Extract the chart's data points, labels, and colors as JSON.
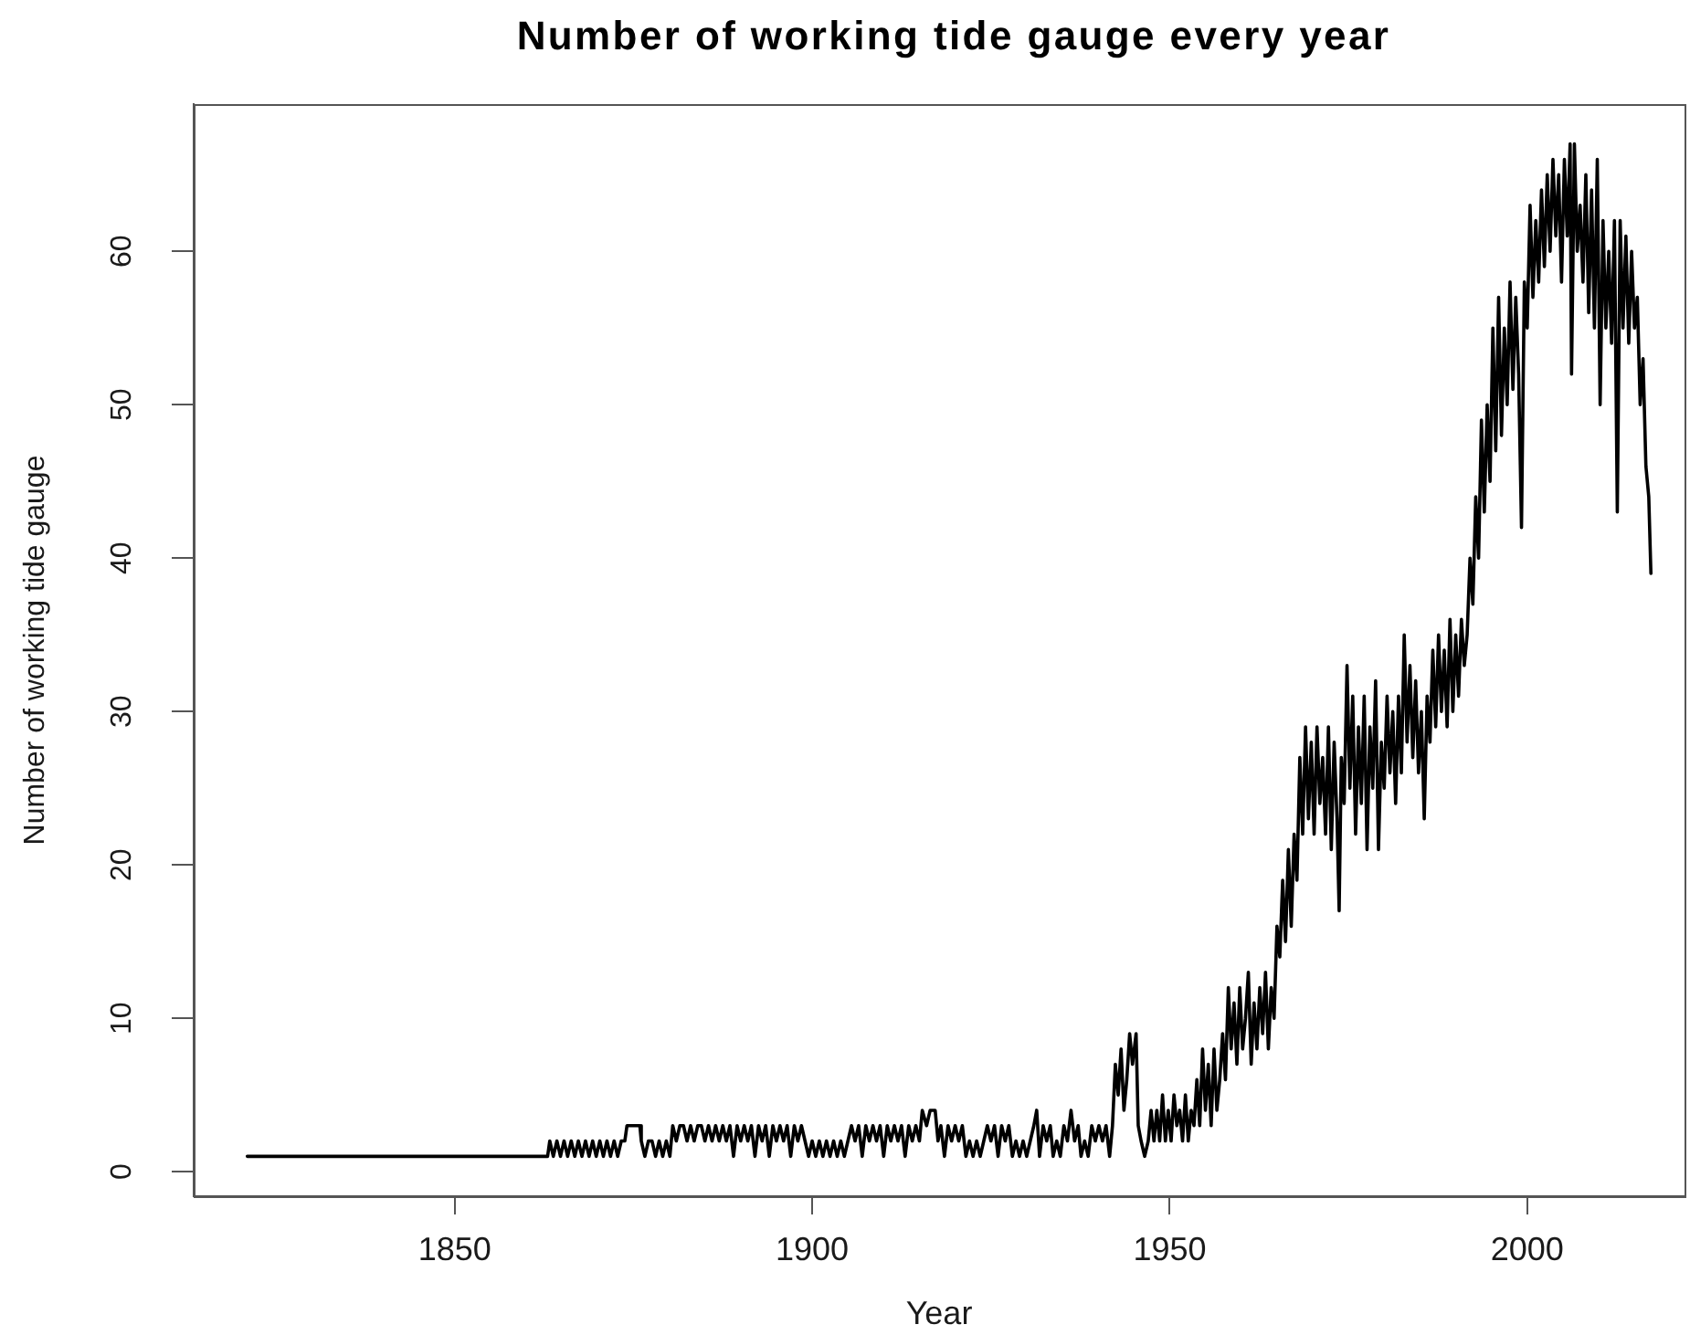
{
  "chart_data": {
    "type": "line",
    "title": "Number of working tide gauge every year",
    "xlabel": "Year",
    "ylabel": "Number of working tide gauge",
    "color": "#000000",
    "xlim": [
      1813.5,
      2022
    ],
    "xticks": [
      1850,
      1900,
      1950,
      2000
    ],
    "ylim": [
      -1.6,
      69.6
    ],
    "yticks": [
      0,
      10,
      20,
      30,
      40,
      50,
      60
    ],
    "x": [
      1821,
      1863,
      1863.3,
      1863.8,
      1864.3,
      1864.8,
      1865.3,
      1865.8,
      1866.3,
      1866.8,
      1867.3,
      1867.8,
      1868.3,
      1868.8,
      1869.3,
      1869.8,
      1870.3,
      1870.8,
      1871.3,
      1871.8,
      1872.3,
      1872.8,
      1873.3,
      1873.8,
      1874.1,
      1875.9,
      1876.1,
      1876.6,
      1877.1,
      1877.6,
      1878.1,
      1878.6,
      1879.1,
      1879.6,
      1880.1,
      1880.5,
      1881,
      1881.5,
      1882,
      1882.5,
      1883,
      1883.5,
      1884,
      1884.5,
      1885,
      1885.5,
      1886,
      1886.5,
      1887,
      1887.5,
      1888,
      1888.5,
      1889,
      1889.5,
      1890,
      1890.5,
      1891,
      1891.5,
      1892,
      1892.5,
      1893,
      1893.5,
      1894,
      1894.5,
      1895,
      1895.5,
      1896,
      1896.5,
      1897,
      1897.5,
      1898,
      1898.5,
      1899,
      1899.5,
      1900,
      1900.5,
      1901,
      1901.5,
      1902,
      1902.5,
      1903,
      1903.5,
      1904,
      1904.5,
      1905,
      1905.5,
      1906,
      1906.5,
      1907,
      1907.5,
      1908,
      1908.5,
      1909,
      1909.5,
      1910,
      1910.5,
      1911,
      1911.5,
      1912,
      1912.5,
      1913,
      1913.5,
      1914,
      1914.5,
      1915,
      1915.4,
      1916,
      1916.5,
      1917.2,
      1917.6,
      1918,
      1918.5,
      1919,
      1919.5,
      1920,
      1920.5,
      1921,
      1921.5,
      1922,
      1922.5,
      1923,
      1923.5,
      1924,
      1924.5,
      1925,
      1925.5,
      1926,
      1926.5,
      1927,
      1927.5,
      1928,
      1928.5,
      1929,
      1929.5,
      1930,
      1930.5,
      1931,
      1931.4,
      1931.8,
      1932.3,
      1932.8,
      1933.3,
      1933.7,
      1934.2,
      1934.7,
      1935.2,
      1935.7,
      1936.2,
      1936.7,
      1937.2,
      1937.6,
      1938.1,
      1938.6,
      1939.1,
      1939.6,
      1940.1,
      1940.6,
      1941.1,
      1941.6,
      1942,
      1942.4,
      1942.8,
      1943.2,
      1943.6,
      1944,
      1944.4,
      1944.8,
      1945.3,
      1945.6,
      1946,
      1946.5,
      1947,
      1947.4,
      1947.8,
      1948.2,
      1948.6,
      1949,
      1949.4,
      1949.8,
      1950.2,
      1950.6,
      1951,
      1951.4,
      1951.8,
      1952.2,
      1952.6,
      1953,
      1953.4,
      1953.8,
      1954.2,
      1954.6,
      1955,
      1955.4,
      1955.8,
      1956.2,
      1956.6,
      1957,
      1957.4,
      1957.8,
      1958.2,
      1958.6,
      1959,
      1959.4,
      1959.8,
      1960.2,
      1960.6,
      1961,
      1961.4,
      1961.8,
      1962.2,
      1962.6,
      1963,
      1963.4,
      1963.8,
      1964.2,
      1964.6,
      1965,
      1965.4,
      1965.8,
      1966.2,
      1966.6,
      1967,
      1967.4,
      1967.8,
      1968.2,
      1968.6,
      1969,
      1969.4,
      1969.8,
      1970.2,
      1970.6,
      1971,
      1971.4,
      1971.8,
      1972.2,
      1972.6,
      1973,
      1973.4,
      1973.7,
      1974,
      1974.4,
      1974.8,
      1975.2,
      1975.6,
      1976,
      1976.4,
      1976.8,
      1977.2,
      1977.6,
      1978,
      1978.4,
      1978.8,
      1979.2,
      1979.6,
      1980,
      1980.4,
      1980.8,
      1981.2,
      1981.6,
      1982,
      1982.4,
      1982.8,
      1983.2,
      1983.6,
      1984,
      1984.4,
      1984.8,
      1985.2,
      1985.6,
      1986,
      1986.4,
      1986.8,
      1987.2,
      1987.6,
      1988,
      1988.4,
      1988.8,
      1989.2,
      1989.6,
      1990,
      1990.4,
      1990.8,
      1991.2,
      1991.6,
      1992,
      1992.4,
      1992.8,
      1993.2,
      1993.6,
      1994,
      1994.4,
      1994.8,
      1995.2,
      1995.6,
      1996,
      1996.4,
      1996.8,
      1997.2,
      1997.6,
      1998,
      1998.4,
      1998.8,
      1999.2,
      1999.6,
      2000,
      2000.4,
      2000.8,
      2001.2,
      2001.6,
      2002,
      2002.4,
      2002.8,
      2003.2,
      2003.6,
      2004,
      2004.4,
      2004.8,
      2005.2,
      2005.6,
      2006,
      2006.2,
      2006.6,
      2007,
      2007.4,
      2007.8,
      2008.2,
      2008.6,
      2009,
      2009.4,
      2009.8,
      2010.2,
      2010.6,
      2011,
      2011.4,
      2011.8,
      2012.2,
      2012.6,
      2013,
      2013.4,
      2013.8,
      2014.2,
      2014.6,
      2015,
      2015.4,
      2015.8,
      2016.2,
      2016.6,
      2017,
      2017.3
    ],
    "values": [
      1,
      1,
      2,
      1,
      2,
      1,
      2,
      1,
      2,
      1,
      2,
      1,
      2,
      1,
      2,
      1,
      2,
      1,
      2,
      1,
      2,
      1,
      2,
      2,
      3,
      3,
      2,
      1,
      2,
      2,
      1,
      2,
      1,
      2,
      1,
      3,
      2,
      3,
      3,
      2,
      3,
      2,
      3,
      3,
      2,
      3,
      2,
      3,
      2,
      3,
      2,
      3,
      1,
      3,
      2,
      3,
      2,
      3,
      1,
      3,
      2,
      3,
      1,
      3,
      2,
      3,
      2,
      3,
      1,
      3,
      2,
      3,
      2,
      1,
      2,
      1,
      2,
      1,
      2,
      1,
      2,
      1,
      2,
      1,
      2,
      3,
      2,
      3,
      1,
      3,
      2,
      3,
      2,
      3,
      1,
      3,
      2,
      3,
      2,
      3,
      1,
      3,
      2,
      3,
      2,
      4,
      3,
      4,
      4,
      2,
      3,
      1,
      3,
      2,
      3,
      2,
      3,
      1,
      2,
      1,
      2,
      1,
      2,
      3,
      2,
      3,
      1,
      3,
      2,
      3,
      1,
      2,
      1,
      2,
      1,
      2,
      3,
      4,
      1,
      3,
      2,
      3,
      1,
      2,
      1,
      3,
      2,
      4,
      2,
      3,
      1,
      2,
      1,
      3,
      2,
      3,
      2,
      3,
      1,
      3,
      7,
      5,
      8,
      4,
      6,
      9,
      7,
      9,
      3,
      2,
      1,
      2,
      4,
      2,
      4,
      2,
      5,
      2,
      4,
      2,
      5,
      3,
      4,
      2,
      5,
      2,
      4,
      3,
      6,
      3,
      8,
      4,
      7,
      3,
      8,
      4,
      6,
      9,
      6,
      12,
      8,
      11,
      7,
      12,
      8,
      10,
      13,
      7,
      11,
      8,
      12,
      9,
      13,
      8,
      12,
      10,
      16,
      14,
      19,
      15,
      21,
      16,
      22,
      19,
      27,
      22,
      29,
      23,
      28,
      22,
      29,
      24,
      27,
      22,
      29,
      21,
      28,
      23,
      17,
      27,
      24,
      33,
      25,
      31,
      22,
      29,
      24,
      31,
      21,
      29,
      25,
      32,
      21,
      28,
      25,
      31,
      26,
      30,
      24,
      31,
      26,
      35,
      28,
      33,
      27,
      32,
      26,
      30,
      23,
      31,
      28,
      34,
      29,
      35,
      30,
      34,
      29,
      36,
      30,
      35,
      31,
      36,
      33,
      35,
      40,
      37,
      44,
      40,
      49,
      43,
      50,
      45,
      55,
      47,
      57,
      48,
      55,
      50,
      58,
      51,
      57,
      52,
      42,
      58,
      55,
      63,
      57,
      62,
      58,
      64,
      59,
      65,
      60,
      66,
      61,
      65,
      58,
      66,
      61,
      67,
      52,
      67,
      60,
      63,
      58,
      65,
      56,
      64,
      55,
      66,
      50,
      62,
      55,
      60,
      54,
      62,
      43,
      62,
      55,
      61,
      54,
      60,
      55,
      57,
      50,
      53,
      46,
      44,
      39
    ]
  }
}
